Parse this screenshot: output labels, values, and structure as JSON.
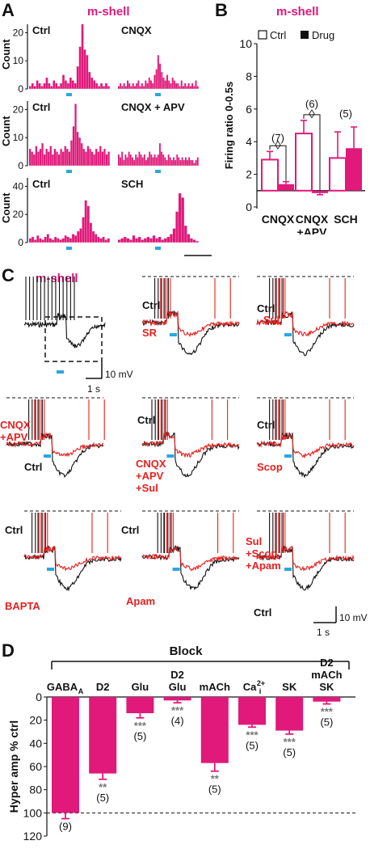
{
  "colors": {
    "magenta": "#e0197a",
    "red": "#e81e1e",
    "black": "#111111",
    "blue": "#2aa7e0"
  },
  "panel_labels": {
    "a": "A",
    "b": "B",
    "c": "C",
    "d": "D"
  },
  "panelA": {
    "title": "m-shell",
    "ylabel": "Count",
    "rows": [
      {
        "left": "Ctrl",
        "right": "CNQX",
        "yticks": [
          "20",
          "10",
          "0"
        ]
      },
      {
        "left": "Ctrl",
        "right": "CNQX + APV",
        "yticks": [
          "20",
          "10",
          "0"
        ]
      },
      {
        "left": "Ctrl",
        "right": "SCH",
        "yticks": [
          "40",
          "20",
          "0"
        ]
      }
    ],
    "scale": "1 s",
    "histograms": [
      [
        1,
        2,
        1,
        3,
        2,
        1,
        2,
        4,
        2,
        1,
        3,
        2,
        1,
        2,
        5,
        3,
        2,
        4,
        3,
        2,
        8,
        15,
        23,
        14,
        12,
        6,
        4,
        3,
        2,
        1,
        2,
        1,
        2,
        1
      ],
      [
        1,
        2,
        1,
        2,
        1,
        3,
        2,
        1,
        2,
        1,
        2,
        3,
        1,
        2,
        1,
        3,
        2,
        4,
        3,
        2,
        5,
        7,
        12,
        9,
        6,
        4,
        3,
        5,
        3,
        2,
        4,
        3,
        2,
        2,
        1,
        3,
        1,
        2,
        1,
        2,
        1,
        2,
        1,
        3,
        1
      ],
      [
        6,
        5,
        4,
        7,
        5,
        6,
        8,
        4,
        6,
        5,
        7,
        4,
        6,
        5,
        4,
        6,
        5,
        7,
        6,
        5,
        9,
        14,
        22,
        12,
        10,
        8,
        6,
        5,
        7,
        6,
        5,
        4,
        6,
        5,
        7,
        5,
        6,
        4,
        5
      ],
      [
        4,
        3,
        5,
        2,
        4,
        3,
        5,
        4,
        3,
        2,
        4,
        3,
        5,
        4,
        3,
        4,
        2,
        3,
        5,
        4,
        3,
        4,
        3,
        4,
        8,
        5,
        4,
        3,
        2,
        4,
        3,
        2,
        3,
        2,
        4,
        3,
        2,
        3,
        2,
        3,
        2,
        3,
        2,
        2,
        1,
        2,
        3
      ],
      [
        3,
        4,
        2,
        5,
        3,
        2,
        4,
        6,
        3,
        2,
        4,
        3,
        2,
        3,
        5,
        4,
        3,
        6,
        5,
        8,
        10,
        18,
        30,
        26,
        14,
        8,
        6,
        4,
        3,
        4,
        2,
        3
      ],
      [
        2,
        3,
        4,
        3,
        2,
        5,
        3,
        4,
        2,
        3,
        4,
        3,
        5,
        3,
        4,
        2,
        3,
        4,
        6,
        10,
        22,
        35,
        32,
        12,
        6,
        3,
        2,
        1
      ]
    ]
  },
  "panelB": {
    "title": "m-shell",
    "legend_ctrl": "Ctrl",
    "legend_drug": "Drug",
    "ylabel": "Firing ratio 0-0.5s",
    "diamond": "◊",
    "n_labels": [
      "(7)",
      "(6)",
      "(5)"
    ]
  },
  "panelC": {
    "title": "m-shell",
    "scale_a": "10 mV",
    "scale_b": "1 s",
    "labels": {
      "ctrl": "Ctrl",
      "sr": "SR",
      "sul": "Sul",
      "cnqx_apv": "CNQX\n+APV",
      "cnqx_apv_sul": "CNQX\n+APV\n+Sul",
      "scop": "Scop",
      "bapta": "BAPTA",
      "apam": "Apam",
      "sul_scop_apam": "Sul\n+Scop\n+Apam"
    }
  },
  "chart_data": [
    {
      "type": "bar",
      "title": "m-shell",
      "ylabel": "Firing ratio 0-0.5s",
      "categories": [
        "CNQX",
        "CNQX\n+APV",
        "SCH"
      ],
      "series": [
        {
          "name": "Ctrl",
          "values": [
            2.9,
            4.5,
            3.0
          ],
          "errors": [
            0.5,
            0.8,
            1.6
          ]
        },
        {
          "name": "Drug",
          "values": [
            1.4,
            0.85,
            3.6
          ],
          "errors": [
            0.15,
            0.1,
            1.3
          ]
        }
      ],
      "ylim": [
        0,
        10
      ],
      "yticks": [
        0,
        2,
        4,
        6,
        8,
        10
      ],
      "n": [
        "(7)",
        "(6)",
        "(5)"
      ],
      "legend_position": "top"
    },
    {
      "type": "bar",
      "title": "Block",
      "ylabel": "Hyper amp % ctrl",
      "categories": [
        "GABA_A",
        "D2",
        "Glu",
        "D2\nGlu",
        "mACh",
        "Ca2+i",
        "SK",
        "D2\nmACh\nSK"
      ],
      "values": [
        100,
        66,
        14,
        3,
        57,
        24,
        29,
        4
      ],
      "errors": [
        5,
        5,
        4,
        2,
        7,
        2,
        3,
        2
      ],
      "significance": [
        "",
        "**",
        "***",
        "***",
        "**",
        "***",
        "***",
        "***"
      ],
      "n": [
        "(9)",
        "(5)",
        "(5)",
        "(4)",
        "(5)",
        "(5)",
        "(5)",
        "(5)"
      ],
      "ylim": [
        0,
        120
      ],
      "yticks": [
        0,
        20,
        40,
        60,
        80,
        100,
        120
      ],
      "y_inverted": true
    }
  ],
  "panelD": {
    "block_label": "Block"
  }
}
